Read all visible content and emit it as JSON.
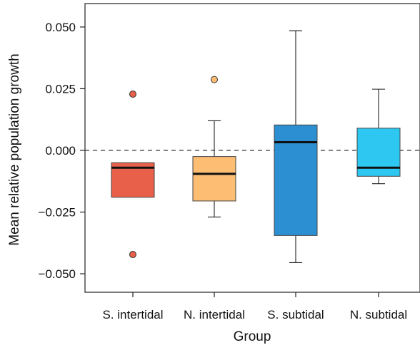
{
  "chart_data": {
    "type": "boxplot",
    "title": "",
    "xlabel": "Group",
    "ylabel": "Mean relative population growth",
    "ylim": [
      -0.0575,
      0.0595
    ],
    "yticks": [
      -0.05,
      -0.025,
      0.0,
      0.025,
      0.05
    ],
    "ytick_labels": [
      "−0.050",
      "−0.025",
      "0.000",
      "0.025",
      "0.050"
    ],
    "reference_line": {
      "y": 0.0,
      "style": "dashed"
    },
    "categories": [
      "S. intertidal",
      "N. intertidal",
      "S. subtidal",
      "N. subtidal"
    ],
    "boxes": [
      {
        "name": "S. intertidal",
        "color": "#E8604A",
        "whisker_low": -0.019,
        "q1": -0.019,
        "median": -0.007,
        "q3": -0.005,
        "whisker_high": -0.005,
        "outliers": [
          0.0228,
          -0.0422
        ]
      },
      {
        "name": "N. intertidal",
        "color": "#FDBD73",
        "whisker_low": -0.027,
        "q1": -0.0205,
        "median": -0.0095,
        "q3": -0.0025,
        "whisker_high": 0.012,
        "outliers": [
          0.0287
        ]
      },
      {
        "name": "S. subtidal",
        "color": "#2B8FD2",
        "whisker_low": -0.0455,
        "q1": -0.0345,
        "median": 0.0033,
        "q3": 0.0103,
        "whisker_high": 0.0485,
        "outliers": []
      },
      {
        "name": "N. subtidal",
        "color": "#2EC7F2",
        "whisker_low": -0.0135,
        "q1": -0.0105,
        "median": -0.007,
        "q3": 0.009,
        "whisker_high": 0.0248,
        "outliers": []
      }
    ]
  }
}
